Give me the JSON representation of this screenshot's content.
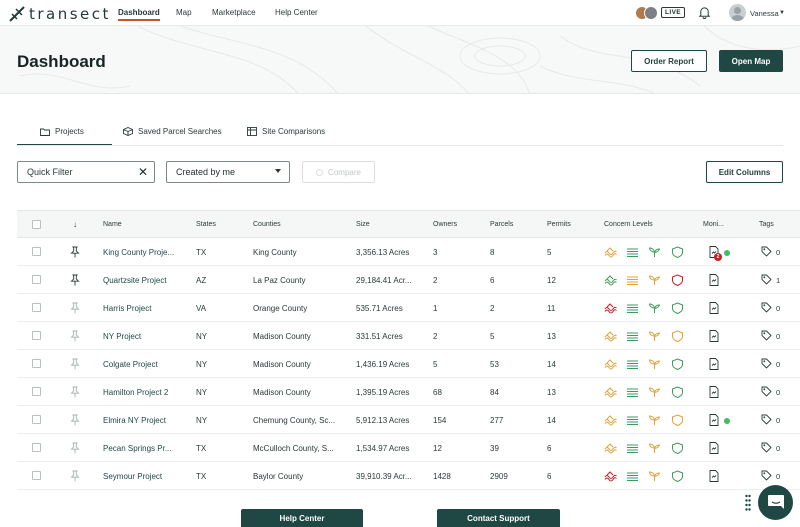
{
  "brand": {
    "name": "transect"
  },
  "nav": {
    "items": [
      {
        "label": "Dashboard",
        "active": true
      },
      {
        "label": "Map",
        "active": false
      },
      {
        "label": "Marketplace",
        "active": false
      },
      {
        "label": "Help Center",
        "active": false
      }
    ],
    "live_label": "LIVE",
    "user_name": "Vanessa"
  },
  "header": {
    "title": "Dashboard",
    "order_report_label": "Order Report",
    "open_map_label": "Open Map"
  },
  "tabs": [
    {
      "label": "Projects",
      "icon": "folder-icon",
      "active": true
    },
    {
      "label": "Saved Parcel Searches",
      "icon": "box-icon",
      "active": false
    },
    {
      "label": "Site Comparisons",
      "icon": "columns-icon",
      "active": false
    }
  ],
  "filters": {
    "quick_filter_placeholder": "Quick Filter",
    "created_by": "Created by me",
    "compare_label": "Compare",
    "edit_columns_label": "Edit Columns"
  },
  "table": {
    "columns": {
      "name": "Name",
      "states": "States",
      "counties": "Counties",
      "size": "Size",
      "owners": "Owners",
      "parcels": "Parcels",
      "permits": "Permits",
      "concern": "Concern Levels",
      "monitor": "Moni...",
      "tags": "Tags"
    },
    "rows": [
      {
        "name": "King County Proje...",
        "state": "TX",
        "county": "King County",
        "size": "3,356.13 Acres",
        "owners": "3",
        "parcels": "8",
        "permits": "5",
        "pinned": true,
        "concern": [
          "#e0a03a",
          "#3f9a5a",
          "#3f9a5a",
          "#3f9a5a"
        ],
        "monitor_badge": "2",
        "monitor_dot": true,
        "tags": "0"
      },
      {
        "name": "Quartzsite Project",
        "state": "AZ",
        "county": "La Paz County",
        "size": "29,184.41 Acr...",
        "owners": "2",
        "parcels": "6",
        "permits": "12",
        "pinned": true,
        "concern": [
          "#3f9a5a",
          "#e0a03a",
          "#e0a03a",
          "#c52026"
        ],
        "monitor_badge": "",
        "monitor_dot": false,
        "tags": "1"
      },
      {
        "name": "Harris Project",
        "state": "VA",
        "county": "Orange County",
        "size": "535.71 Acres",
        "owners": "1",
        "parcels": "2",
        "permits": "11",
        "pinned": false,
        "concern": [
          "#c52026",
          "#3f9a5a",
          "#3f9a5a",
          "#3f9a5a"
        ],
        "monitor_badge": "",
        "monitor_dot": false,
        "tags": "0"
      },
      {
        "name": "NY Project",
        "state": "NY",
        "county": "Madison County",
        "size": "331.51 Acres",
        "owners": "2",
        "parcels": "5",
        "permits": "13",
        "pinned": false,
        "concern": [
          "#e0a03a",
          "#3f9a5a",
          "#e0a03a",
          "#e0a03a"
        ],
        "monitor_badge": "",
        "monitor_dot": false,
        "tags": "0"
      },
      {
        "name": "Colgate Project",
        "state": "NY",
        "county": "Madison County",
        "size": "1,436.19 Acres",
        "owners": "5",
        "parcels": "53",
        "permits": "14",
        "pinned": false,
        "concern": [
          "#e0a03a",
          "#3f9a5a",
          "#e0a03a",
          "#3f9a5a"
        ],
        "monitor_badge": "",
        "monitor_dot": false,
        "tags": "0"
      },
      {
        "name": "Hamilton Project 2",
        "state": "NY",
        "county": "Madison County",
        "size": "1,395.19 Acres",
        "owners": "68",
        "parcels": "84",
        "permits": "13",
        "pinned": false,
        "concern": [
          "#e0a03a",
          "#3f9a5a",
          "#e0a03a",
          "#3f9a5a"
        ],
        "monitor_badge": "",
        "monitor_dot": false,
        "tags": "0"
      },
      {
        "name": "Elmira NY Project",
        "state": "NY",
        "county": "Chemung County, Sc...",
        "size": "5,912.13 Acres",
        "owners": "154",
        "parcels": "277",
        "permits": "14",
        "pinned": false,
        "concern": [
          "#e0a03a",
          "#3f9a5a",
          "#e0a03a",
          "#e0a03a"
        ],
        "monitor_badge": "",
        "monitor_dot": true,
        "tags": "0"
      },
      {
        "name": "Pecan Springs Pr...",
        "state": "TX",
        "county": "McCulloch County, S...",
        "size": "1,534.97 Acres",
        "owners": "12",
        "parcels": "39",
        "permits": "6",
        "pinned": false,
        "concern": [
          "#e0a03a",
          "#3f9a5a",
          "#e0a03a",
          "#3f9a5a"
        ],
        "monitor_badge": "",
        "monitor_dot": false,
        "tags": "0"
      },
      {
        "name": "Seymour Project",
        "state": "TX",
        "county": "Baylor County",
        "size": "39,910.39 Acr...",
        "owners": "1428",
        "parcels": "2909",
        "permits": "6",
        "pinned": false,
        "concern": [
          "#c52026",
          "#3f9a5a",
          "#e0a03a",
          "#3f9a5a"
        ],
        "monitor_badge": "",
        "monitor_dot": false,
        "tags": "0"
      }
    ]
  },
  "footer": {
    "help_center_label": "Help Center",
    "contact_support_label": "Contact Support"
  },
  "colors": {
    "primary": "#1f4845",
    "accent": "#c8502c",
    "good": "#3f9a5a",
    "warn": "#e0a03a",
    "bad": "#c52026"
  }
}
